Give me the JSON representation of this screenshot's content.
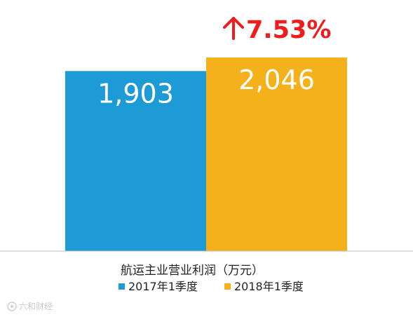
{
  "chart_data": {
    "type": "bar",
    "categories": [
      "2017年1季度",
      "2018年1季度"
    ],
    "values": [
      1903,
      2046
    ],
    "value_labels": [
      "1,903",
      "2,046"
    ],
    "colors": [
      "#1e9bd7",
      "#f5b11c"
    ],
    "xlabel": "航运主业营业利润（万元）",
    "ylim": [
      0,
      2046
    ],
    "legend": {
      "placement": "bottom",
      "entries": [
        "2017年1季度",
        "2018年1季度"
      ]
    },
    "annotation": {
      "text": "7.53%",
      "icon": "arrow-up-icon",
      "color": "#ee1c1c"
    },
    "grid": false
  },
  "watermark": {
    "text": "六和财经"
  }
}
